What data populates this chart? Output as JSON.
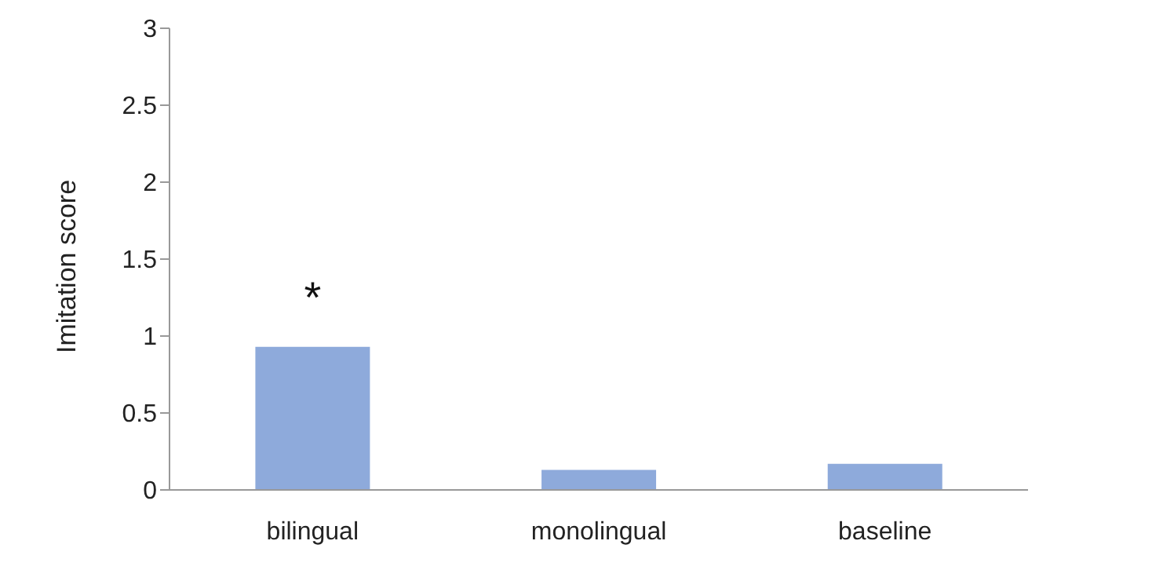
{
  "chart_data": {
    "type": "bar",
    "ylabel": "Imitation score",
    "categories": [
      "bilingual",
      "monolingual",
      "baseline"
    ],
    "values": [
      0.93,
      0.13,
      0.17
    ],
    "color": "#8eaadb",
    "ylim": [
      0,
      3
    ],
    "yticks": [
      0,
      0.5,
      1,
      1.5,
      2,
      2.5,
      3
    ],
    "annotations": [
      "*"
    ]
  }
}
